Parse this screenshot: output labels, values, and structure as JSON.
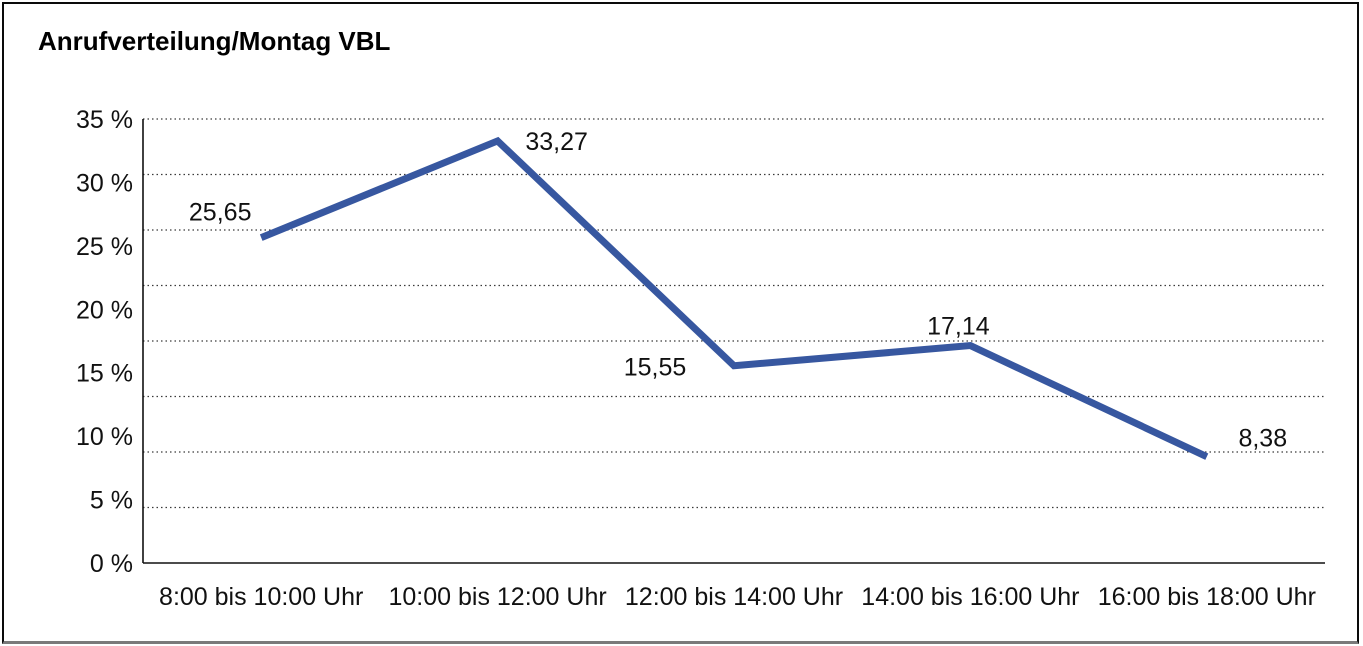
{
  "page": {
    "background_color": "#ffffff",
    "border_color": "#0a0a0a"
  },
  "chart_data": {
    "type": "line",
    "title": "Anrufverteilung/Montag VBL",
    "categories": [
      "8:00 bis 10:00 Uhr",
      "10:00 bis 12:00 Uhr",
      "12:00 bis 14:00 Uhr",
      "14:00 bis 16:00 Uhr",
      "16:00 bis 18:00 Uhr"
    ],
    "values": [
      25.65,
      33.27,
      15.55,
      17.14,
      8.38
    ],
    "value_labels": [
      "25,65",
      "33,27",
      "15,55",
      "17,14",
      "8,38"
    ],
    "xlabel": "",
    "ylabel": "",
    "ylim": [
      0,
      35
    ],
    "yticks": [
      "35 %",
      "30 %",
      "25 %",
      "20 %",
      "15 %",
      "10 %",
      "5 %",
      "0 %"
    ],
    "ytick_step_percent": 5,
    "grid": "horizontal-dotted",
    "gridline_intervals": 8,
    "legend": "none",
    "line_color": "#3757A0",
    "axis_color": "#111111",
    "gridline_color": "#3a3a3a",
    "text_color": "#111111"
  }
}
